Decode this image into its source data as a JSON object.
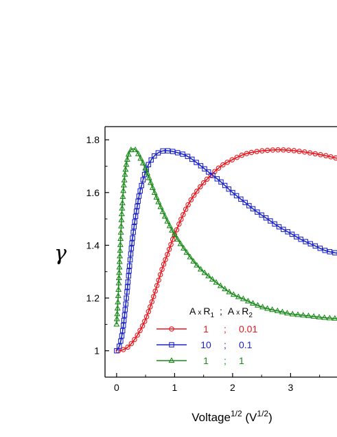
{
  "chart_data": {
    "type": "line",
    "title": "",
    "xlabel": {
      "base": "Voltage",
      "exp": "1/2",
      "unit_open": " (V",
      "unit_exp": "1/2",
      "unit_close": ")"
    },
    "ylabel": "γ",
    "xlim": [
      -0.2,
      3.8
    ],
    "ylim": [
      0.9,
      1.85
    ],
    "xticks": [
      0,
      1,
      2,
      3
    ],
    "yticks": [
      1,
      1.2,
      1.4,
      1.6,
      1.8
    ],
    "ytick_labels": [
      "1",
      "1.2",
      "1.4",
      "1.6",
      "1.8"
    ],
    "grid": false,
    "legend": {
      "position": "bottom-center",
      "header": {
        "a": "A",
        "x": "x",
        "r": "R",
        "sub1": "1",
        "sep": ";",
        "sub2": "2"
      },
      "entries": [
        {
          "r1": "1",
          "sep": ";",
          "r2": "0.01"
        },
        {
          "r1": "10",
          "sep": ";",
          "r2": "0.1"
        },
        {
          "r1": "1",
          "sep": ";",
          "r2": "1"
        }
      ]
    },
    "series": [
      {
        "color": "#e8141b",
        "marker": "circle",
        "x": [
          0.03,
          0.1,
          0.2,
          0.3,
          0.4,
          0.5,
          0.6,
          0.7,
          0.8,
          0.9,
          1.0,
          1.2,
          1.4,
          1.6,
          1.8,
          2.0,
          2.2,
          2.4,
          2.6,
          2.8,
          3.0,
          3.2,
          3.4,
          3.6,
          3.8
        ],
        "y": [
          1.0,
          1.003,
          1.015,
          1.04,
          1.075,
          1.12,
          1.18,
          1.25,
          1.32,
          1.38,
          1.44,
          1.54,
          1.61,
          1.66,
          1.7,
          1.725,
          1.745,
          1.755,
          1.76,
          1.762,
          1.76,
          1.755,
          1.748,
          1.74,
          1.73
        ]
      },
      {
        "color": "#1c24c8",
        "marker": "square",
        "x": [
          0.0,
          0.05,
          0.1,
          0.15,
          0.2,
          0.25,
          0.3,
          0.35,
          0.4,
          0.5,
          0.6,
          0.7,
          0.8,
          0.9,
          1.0,
          1.2,
          1.4,
          1.6,
          1.8,
          2.0,
          2.2,
          2.4,
          2.6,
          2.8,
          3.0,
          3.2,
          3.4,
          3.6,
          3.8
        ],
        "y": [
          1.0,
          1.02,
          1.07,
          1.16,
          1.27,
          1.38,
          1.47,
          1.54,
          1.6,
          1.68,
          1.725,
          1.748,
          1.758,
          1.758,
          1.754,
          1.74,
          1.71,
          1.675,
          1.64,
          1.6,
          1.565,
          1.53,
          1.5,
          1.47,
          1.445,
          1.42,
          1.4,
          1.38,
          1.37
        ]
      },
      {
        "color": "#1a8a1a",
        "marker": "triangle",
        "x": [
          0.0,
          0.03,
          0.06,
          0.1,
          0.15,
          0.2,
          0.25,
          0.3,
          0.35,
          0.4,
          0.5,
          0.6,
          0.7,
          0.8,
          0.9,
          1.0,
          1.2,
          1.4,
          1.6,
          1.8,
          2.0,
          2.2,
          2.4,
          2.6,
          2.8,
          3.0,
          3.2,
          3.4,
          3.6,
          3.8
        ],
        "y": [
          1.1,
          1.22,
          1.38,
          1.56,
          1.68,
          1.74,
          1.762,
          1.765,
          1.755,
          1.735,
          1.69,
          1.63,
          1.575,
          1.525,
          1.48,
          1.44,
          1.375,
          1.32,
          1.28,
          1.245,
          1.215,
          1.195,
          1.175,
          1.16,
          1.15,
          1.14,
          1.135,
          1.13,
          1.125,
          1.122
        ]
      }
    ]
  }
}
